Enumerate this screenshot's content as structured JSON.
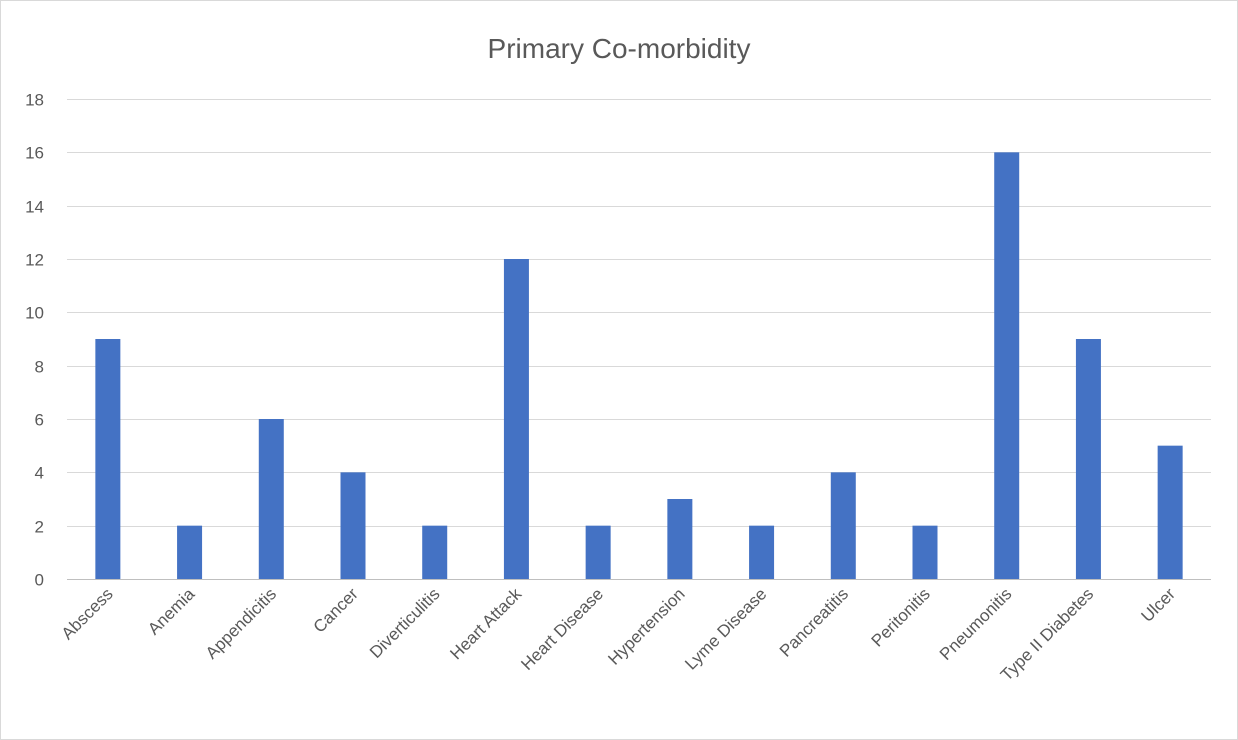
{
  "chart_data": {
    "type": "bar",
    "title": "Primary Co-morbidity",
    "xlabel": "",
    "ylabel": "",
    "categories": [
      "Abscess",
      "Anemia",
      "Appendicitis",
      "Cancer",
      "Diverticulitis",
      "Heart Attack",
      "Heart Disease",
      "Hypertension",
      "Lyme Disease",
      "Pancreatitis",
      "Peritonitis",
      "Pneumonitis",
      "Type II Diabetes",
      "Ulcer"
    ],
    "values": [
      9,
      2,
      6,
      4,
      2,
      12,
      2,
      3,
      2,
      4,
      2,
      16,
      9,
      5
    ],
    "ylim": [
      0,
      18
    ],
    "yticks": [
      0,
      2,
      4,
      6,
      8,
      10,
      12,
      14,
      16,
      18
    ],
    "grid": true,
    "legend": "none",
    "bar_color": "#4472C4"
  }
}
